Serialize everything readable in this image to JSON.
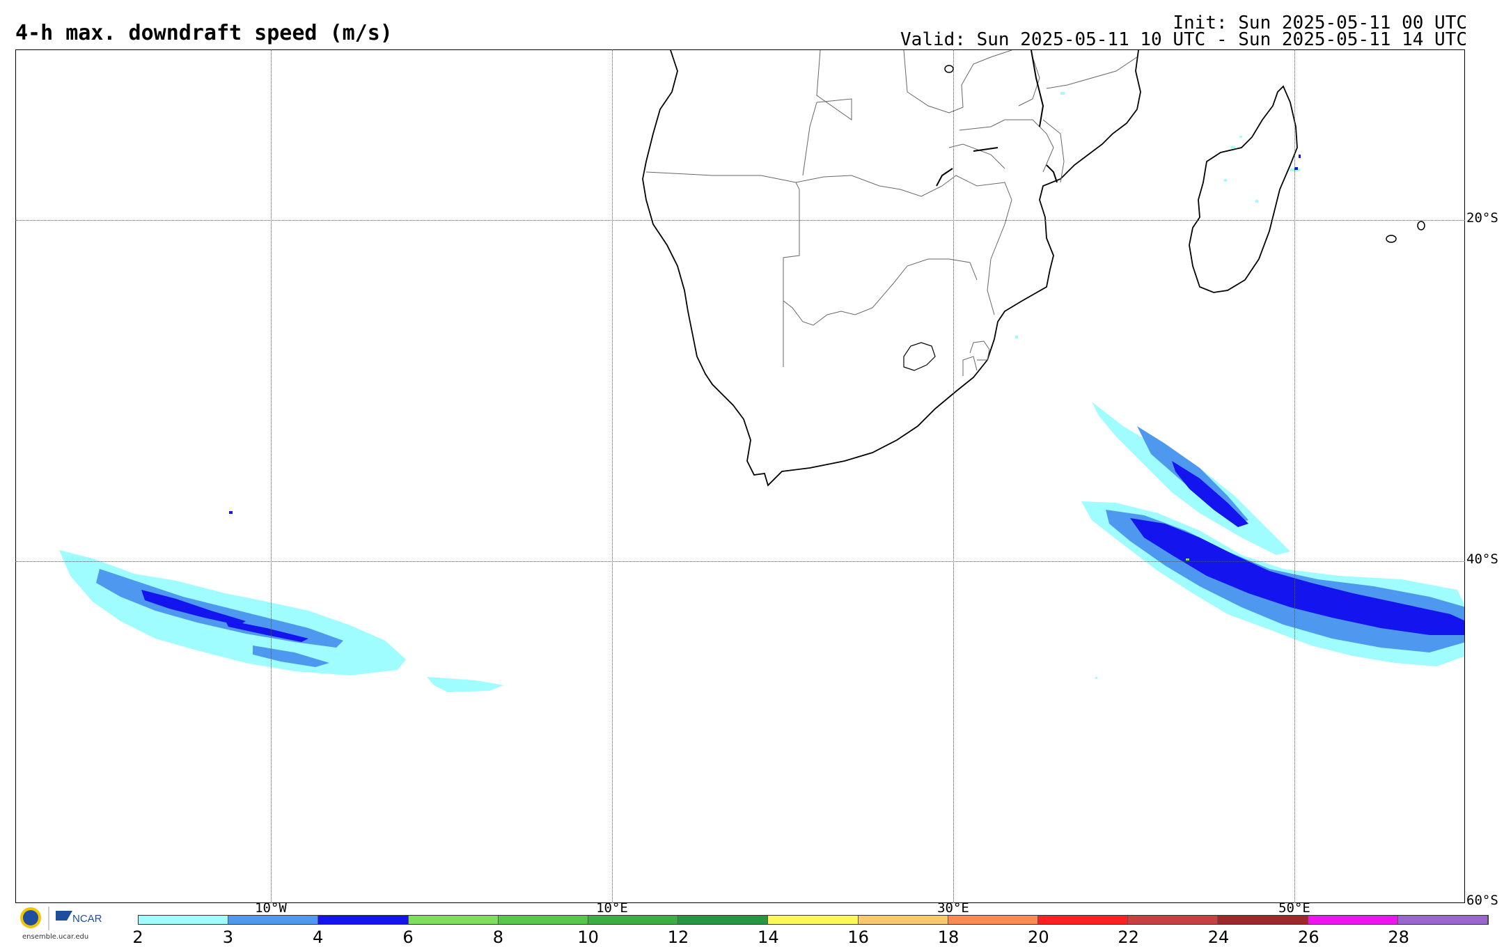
{
  "header": {
    "title": "4-h max. downdraft speed (m/s)",
    "init": "Init: Sun 2025-05-11 00 UTC",
    "valid": "Valid: Sun 2025-05-11 10 UTC - Sun 2025-05-11 14 UTC"
  },
  "map": {
    "lat_labels": [
      "20°S",
      "40°S",
      "60°S"
    ],
    "lon_labels": [
      "10°W",
      "10°E",
      "30°E",
      "50°E"
    ]
  },
  "colorbar": {
    "labels": [
      "2",
      "3",
      "4",
      "6",
      "8",
      "10",
      "12",
      "14",
      "16",
      "18",
      "20",
      "22",
      "24",
      "26",
      "28"
    ],
    "colors": [
      "#9ffcff",
      "#4f98f0",
      "#1414ee",
      "#7ee05a",
      "#55c84a",
      "#3ab040",
      "#249840",
      "#fdf85a",
      "#fdc86a",
      "#fd8a50",
      "#fd2020",
      "#c84040",
      "#a02828",
      "#ee14ee",
      "#9a66d0"
    ]
  },
  "footer": {
    "org": "NCAR",
    "url": "ensemble.ucar.edu"
  }
}
